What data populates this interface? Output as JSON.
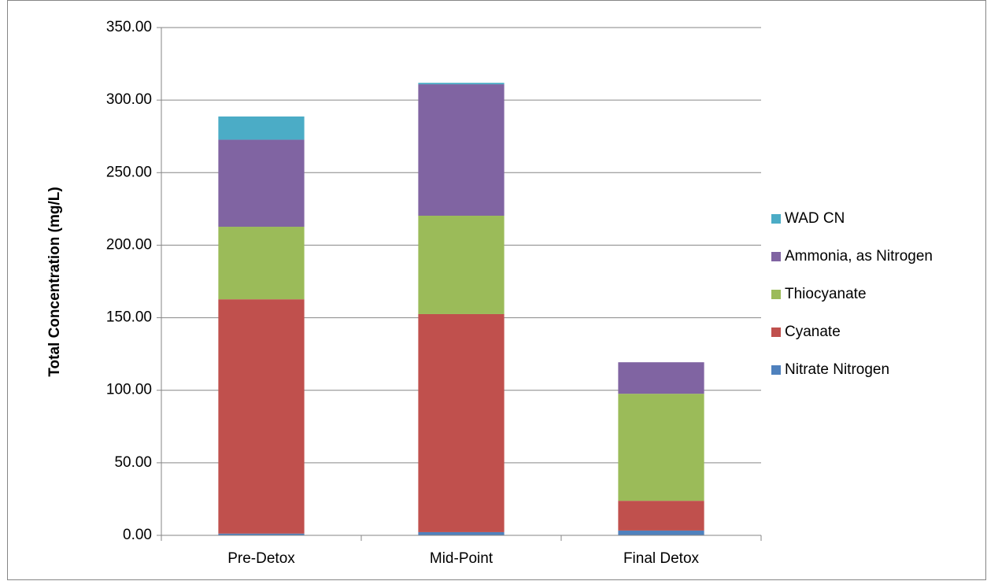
{
  "chart_data": {
    "type": "stacked-bar",
    "y_label": "Total Concentration (mg/L)",
    "categories": [
      "Pre-Detox",
      "Mid-Point",
      "Final Detox"
    ],
    "series": [
      {
        "name": "Nitrate Nitrogen",
        "color": "#4f81bd",
        "values": [
          1.2,
          2.2,
          3.3
        ]
      },
      {
        "name": "Cyanate",
        "color": "#c0504d",
        "values": [
          161.5,
          150.3,
          20.5
        ]
      },
      {
        "name": "Thiocyanate",
        "color": "#9bbb59",
        "values": [
          50,
          67.8,
          73.8
        ]
      },
      {
        "name": "Ammonia, as Nitrogen",
        "color": "#8064a2",
        "values": [
          60,
          90.6,
          21.7
        ]
      },
      {
        "name": "WAD CN",
        "color": "#4bacc6",
        "values": [
          16,
          1,
          0
        ]
      }
    ],
    "ylim": [
      0,
      350
    ],
    "yticks": [
      {
        "value": 0,
        "label": "0.00"
      },
      {
        "value": 50,
        "label": "50.00"
      },
      {
        "value": 100,
        "label": "100.00"
      },
      {
        "value": 150,
        "label": "150.00"
      },
      {
        "value": 200,
        "label": "200.00"
      },
      {
        "value": 250,
        "label": "250.00"
      },
      {
        "value": 300,
        "label": "300.00"
      },
      {
        "value": 350,
        "label": "350.00"
      }
    ],
    "grid": true,
    "legend": "right"
  }
}
